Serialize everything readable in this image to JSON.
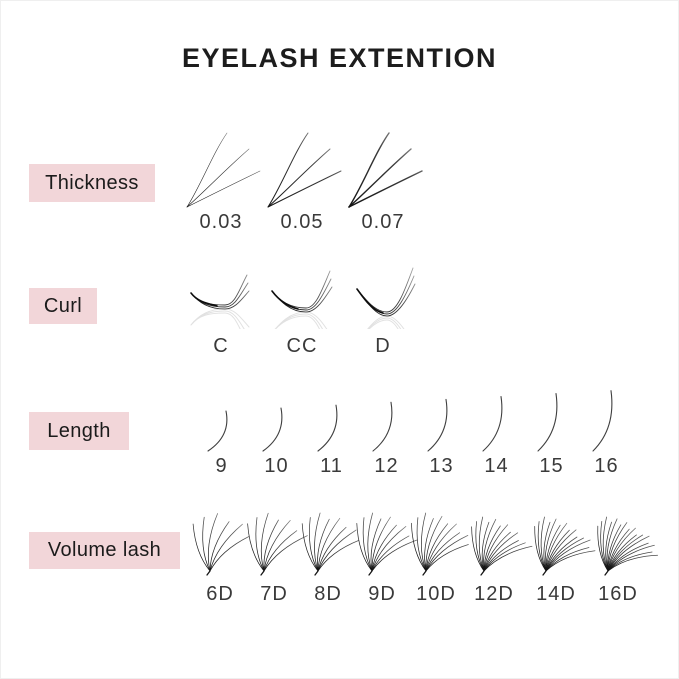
{
  "title": "EYELASH EXTENTION",
  "colors": {
    "accent_pink": "#f2d6d9",
    "title_text": "#1d1d1d",
    "label_text": "#1b1b1b",
    "value_text": "#3a3a3a",
    "lash_stroke": "#1a1a1a"
  },
  "sections": {
    "thickness": {
      "label": "Thickness",
      "items": [
        {
          "value": "0.03"
        },
        {
          "value": "0.05"
        },
        {
          "value": "0.07"
        }
      ]
    },
    "curl": {
      "label": "Curl",
      "items": [
        {
          "value": "C"
        },
        {
          "value": "CC"
        },
        {
          "value": "D"
        }
      ]
    },
    "length": {
      "label": "Length",
      "items": [
        {
          "value": "9"
        },
        {
          "value": "10"
        },
        {
          "value": "11"
        },
        {
          "value": "12"
        },
        {
          "value": "13"
        },
        {
          "value": "14"
        },
        {
          "value": "15"
        },
        {
          "value": "16"
        }
      ]
    },
    "volume": {
      "label": "Volume lash",
      "items": [
        {
          "value": "6D",
          "count": 6
        },
        {
          "value": "7D",
          "count": 7
        },
        {
          "value": "8D",
          "count": 8
        },
        {
          "value": "9D",
          "count": 9
        },
        {
          "value": "10D",
          "count": 10
        },
        {
          "value": "12D",
          "count": 12
        },
        {
          "value": "14D",
          "count": 14
        },
        {
          "value": "16D",
          "count": 16
        }
      ]
    }
  }
}
